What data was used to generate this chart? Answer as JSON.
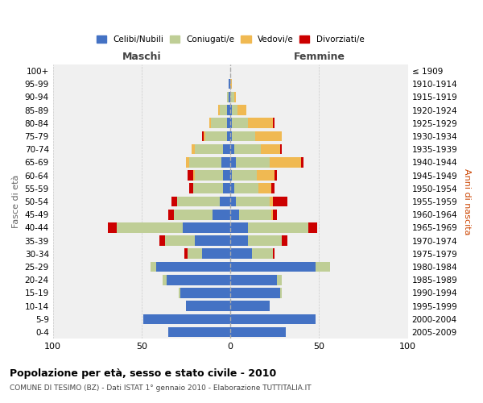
{
  "age_groups": [
    "0-4",
    "5-9",
    "10-14",
    "15-19",
    "20-24",
    "25-29",
    "30-34",
    "35-39",
    "40-44",
    "45-49",
    "50-54",
    "55-59",
    "60-64",
    "65-69",
    "70-74",
    "75-79",
    "80-84",
    "85-89",
    "90-94",
    "95-99",
    "100+"
  ],
  "birth_years": [
    "2005-2009",
    "2000-2004",
    "1995-1999",
    "1990-1994",
    "1985-1989",
    "1980-1984",
    "1975-1979",
    "1970-1974",
    "1965-1969",
    "1960-1964",
    "1955-1959",
    "1950-1954",
    "1945-1949",
    "1940-1944",
    "1935-1939",
    "1930-1934",
    "1925-1929",
    "1920-1924",
    "1915-1919",
    "1910-1914",
    "≤ 1909"
  ],
  "males": {
    "celibi": [
      35,
      49,
      25,
      28,
      36,
      42,
      16,
      20,
      27,
      10,
      6,
      4,
      4,
      5,
      4,
      2,
      2,
      2,
      1,
      1,
      0
    ],
    "coniugati": [
      0,
      0,
      0,
      1,
      2,
      3,
      8,
      17,
      37,
      22,
      24,
      17,
      16,
      18,
      16,
      12,
      9,
      4,
      1,
      0,
      0
    ],
    "vedovi": [
      0,
      0,
      0,
      0,
      0,
      0,
      0,
      0,
      0,
      0,
      0,
      0,
      1,
      2,
      2,
      1,
      1,
      1,
      0,
      0,
      0
    ],
    "divorziati": [
      0,
      0,
      0,
      0,
      0,
      0,
      2,
      3,
      5,
      3,
      3,
      2,
      3,
      0,
      0,
      1,
      0,
      0,
      0,
      0,
      0
    ]
  },
  "females": {
    "nubili": [
      31,
      48,
      22,
      28,
      26,
      48,
      12,
      10,
      10,
      5,
      3,
      2,
      1,
      3,
      2,
      1,
      1,
      1,
      0,
      0,
      0
    ],
    "coniugate": [
      0,
      0,
      0,
      1,
      3,
      8,
      12,
      19,
      34,
      18,
      19,
      14,
      14,
      19,
      15,
      13,
      9,
      3,
      2,
      0,
      0
    ],
    "vedove": [
      0,
      0,
      0,
      0,
      0,
      0,
      0,
      0,
      0,
      1,
      2,
      7,
      10,
      18,
      11,
      15,
      14,
      5,
      1,
      1,
      0
    ],
    "divorziate": [
      0,
      0,
      0,
      0,
      0,
      0,
      1,
      3,
      5,
      2,
      8,
      2,
      1,
      1,
      1,
      0,
      1,
      0,
      0,
      0,
      0
    ]
  },
  "colors": {
    "celibi_nubili": "#4472C4",
    "coniugati_e": "#BFCE96",
    "vedovi_e": "#F0B952",
    "divorziati_e": "#CC0000"
  },
  "title": "Popolazione per età, sesso e stato civile - 2010",
  "subtitle": "COMUNE DI TESIMO (BZ) - Dati ISTAT 1° gennaio 2010 - Elaborazione TUTTITALIA.IT",
  "xlabel_left": "Maschi",
  "xlabel_right": "Femmine",
  "ylabel_left": "Fasce di età",
  "ylabel_right": "Anni di nascita",
  "xlim": 100,
  "bg_color": "#ffffff",
  "plot_bg": "#f0f0f0",
  "grid_color": "#cccccc"
}
